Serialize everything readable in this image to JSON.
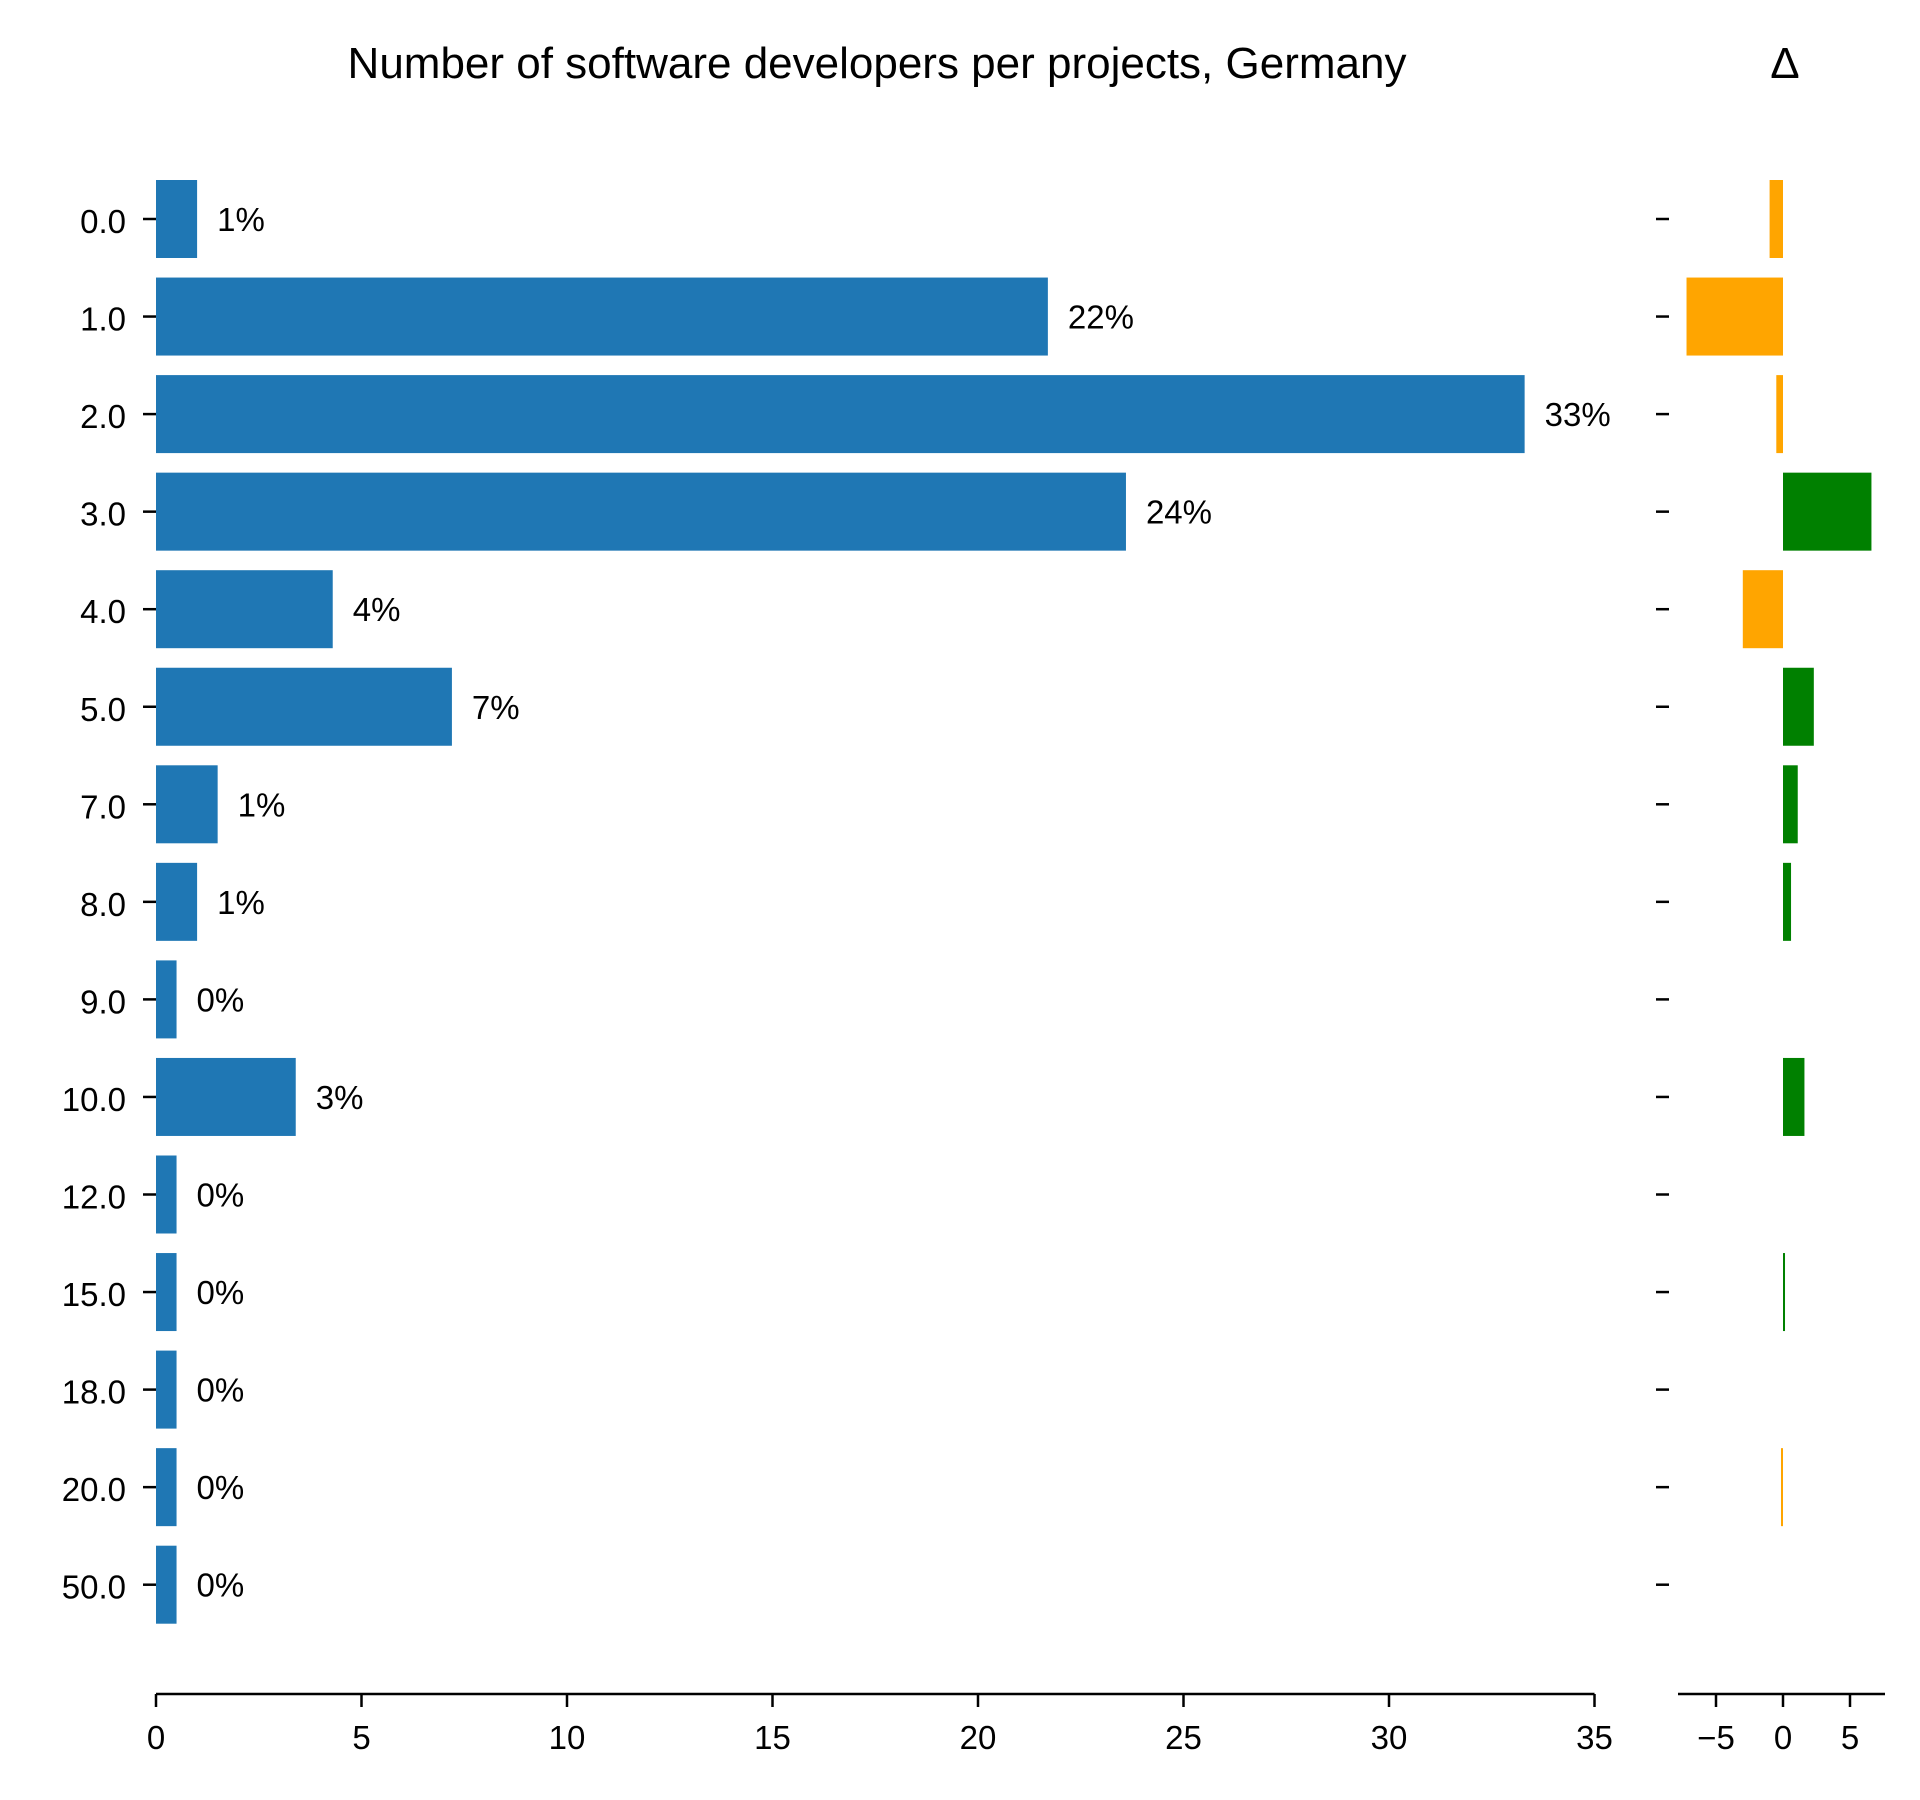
{
  "chart_data": {
    "type": "bar",
    "orientation": "horizontal",
    "title": "Number of software developers per projects, Germany",
    "xlim": [
      0,
      35
    ],
    "x_ticks": [
      "0",
      "5",
      "10",
      "15",
      "20",
      "25",
      "30",
      "35"
    ],
    "categories": [
      "0.0",
      "1.0",
      "2.0",
      "3.0",
      "4.0",
      "5.0",
      "7.0",
      "8.0",
      "9.0",
      "10.0",
      "12.0",
      "15.0",
      "18.0",
      "20.0",
      "50.0"
    ],
    "values": [
      1.0,
      21.7,
      33.3,
      23.6,
      4.3,
      7.2,
      1.5,
      1.0,
      0.5,
      3.4,
      0.5,
      0.5,
      0.5,
      0.5,
      0.5
    ],
    "value_labels": [
      "1%",
      "22%",
      "33%",
      "24%",
      "4%",
      "7%",
      "1%",
      "1%",
      "0%",
      "3%",
      "0%",
      "0%",
      "0%",
      "0%",
      "0%"
    ],
    "color": "#1f77b4",
    "delta": {
      "title": "Δ",
      "xlim": [
        -8,
        7.5
      ],
      "x_ticks": [
        "−5",
        "0",
        "5"
      ],
      "values": [
        -1.0,
        -7.2,
        -0.5,
        6.6,
        -3.0,
        2.3,
        1.1,
        0.6,
        0.0,
        1.6,
        0.0,
        0.15,
        0.0,
        -0.15,
        0.0
      ],
      "positive_color": "#008000",
      "negative_color": "#ffa500"
    }
  }
}
